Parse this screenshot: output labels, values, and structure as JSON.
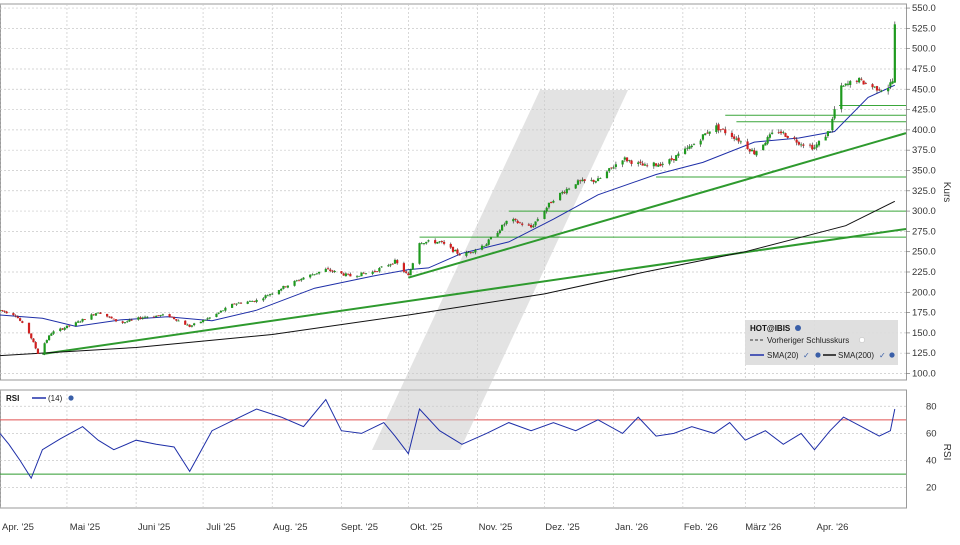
{
  "instrument": "HOT@IBIS",
  "legend": {
    "instrument_label": "HOT@IBIS",
    "prev_close_label": "Vorheriger Schlusskurs",
    "sma20_label": "SMA(20)",
    "sma200_label": "SMA(200)"
  },
  "rsi_panel": {
    "label": "RSI",
    "period_label": "(14)"
  },
  "chart_data": [
    {
      "type": "candlestick",
      "ylabel": "Kurs",
      "ylim": [
        92,
        555
      ],
      "yticks": [
        100,
        125,
        150,
        175,
        200,
        225,
        250,
        275,
        300,
        325,
        350,
        375,
        400,
        425,
        450,
        475,
        500,
        525,
        550
      ],
      "ytick_labels": [
        "100.0",
        "125.0",
        "150.0",
        "175.0",
        "200.0",
        "225.0",
        "250.0",
        "275.0",
        "300.0",
        "325.0",
        "350.0",
        "375.0",
        "400.0",
        "425.0",
        "450.0",
        "475.0",
        "500.0",
        "525.0",
        "550.0"
      ],
      "xlim": [
        "2025-04-01",
        "2026-05-12"
      ],
      "x_ticks": [
        "2025-04-01",
        "2025-05-01",
        "2025-06-01",
        "2025-07-01",
        "2025-08-01",
        "2025-09-01",
        "2025-10-01",
        "2025-11-01",
        "2025-12-01",
        "2026-01-01",
        "2026-02-01",
        "2026-03-01",
        "2026-04-01"
      ],
      "x_tick_labels": [
        "Apr. '25",
        "Mai '25",
        "Juni '25",
        "Juli '25",
        "Aug. '25",
        "Sept. '25",
        "Okt. '25",
        "Nov. '25",
        "Dez. '25",
        "Jan. '26",
        "Feb. '26",
        "März '26",
        "Apr. '26"
      ],
      "grid": true,
      "legend_position": "bottom-right",
      "price_path": [
        [
          "2025-04-01",
          178
        ],
        [
          "2025-04-08",
          172
        ],
        [
          "2025-04-14",
          150
        ],
        [
          "2025-04-18",
          125
        ],
        [
          "2025-04-24",
          150
        ],
        [
          "2025-05-05",
          162
        ],
        [
          "2025-05-15",
          176
        ],
        [
          "2025-05-25",
          162
        ],
        [
          "2025-06-05",
          170
        ],
        [
          "2025-06-15",
          172
        ],
        [
          "2025-06-25",
          158
        ],
        [
          "2025-07-05",
          170
        ],
        [
          "2025-07-15",
          186
        ],
        [
          "2025-07-25",
          190
        ],
        [
          "2025-08-05",
          205
        ],
        [
          "2025-08-15",
          218
        ],
        [
          "2025-08-25",
          228
        ],
        [
          "2025-09-05",
          220
        ],
        [
          "2025-09-15",
          225
        ],
        [
          "2025-09-25",
          238
        ],
        [
          "2025-10-01",
          220
        ],
        [
          "2025-10-06",
          262
        ],
        [
          "2025-10-15",
          262
        ],
        [
          "2025-10-25",
          245
        ],
        [
          "2025-11-05",
          260
        ],
        [
          "2025-11-15",
          290
        ],
        [
          "2025-11-25",
          280
        ],
        [
          "2025-12-05",
          315
        ],
        [
          "2025-12-15",
          335
        ],
        [
          "2025-12-25",
          338
        ],
        [
          "2026-01-05",
          365
        ],
        [
          "2026-01-15",
          355
        ],
        [
          "2026-01-25",
          360
        ],
        [
          "2026-02-05",
          380
        ],
        [
          "2026-02-15",
          405
        ],
        [
          "2026-02-25",
          390
        ],
        [
          "2026-03-05",
          372
        ],
        [
          "2026-03-15",
          400
        ],
        [
          "2026-03-25",
          385
        ],
        [
          "2026-04-01",
          378
        ],
        [
          "2026-04-08",
          400
        ],
        [
          "2026-04-12",
          450
        ],
        [
          "2026-04-20",
          462
        ],
        [
          "2026-04-28",
          452
        ],
        [
          "2026-05-03",
          450
        ],
        [
          "2026-05-06",
          460
        ],
        [
          "2026-05-07",
          530
        ]
      ],
      "series": [
        {
          "name": "SMA(20)",
          "color": "#1f2fa8",
          "points": [
            [
              "2025-04-01",
              172
            ],
            [
              "2025-04-20",
              168
            ],
            [
              "2025-05-05",
              158
            ],
            [
              "2025-05-25",
              166
            ],
            [
              "2025-06-15",
              170
            ],
            [
              "2025-07-05",
              165
            ],
            [
              "2025-07-25",
              178
            ],
            [
              "2025-08-20",
              205
            ],
            [
              "2025-09-15",
              220
            ],
            [
              "2025-10-01",
              228
            ],
            [
              "2025-10-10",
              230
            ],
            [
              "2025-10-25",
              248
            ],
            [
              "2025-11-15",
              262
            ],
            [
              "2025-12-05",
              290
            ],
            [
              "2025-12-25",
              320
            ],
            [
              "2026-01-20",
              345
            ],
            [
              "2026-02-10",
              360
            ],
            [
              "2026-03-05",
              385
            ],
            [
              "2026-03-25",
              390
            ],
            [
              "2026-04-10",
              398
            ],
            [
              "2026-04-25",
              440
            ],
            [
              "2026-05-07",
              455
            ]
          ]
        },
        {
          "name": "SMA(200)",
          "color": "#111111",
          "points": [
            [
              "2025-04-01",
              122
            ],
            [
              "2025-06-01",
              132
            ],
            [
              "2025-08-01",
              148
            ],
            [
              "2025-10-01",
              172
            ],
            [
              "2025-12-01",
              198
            ],
            [
              "2026-01-15",
              225
            ],
            [
              "2026-03-01",
              250
            ],
            [
              "2026-04-15",
              282
            ],
            [
              "2026-05-07",
              312
            ]
          ]
        }
      ],
      "trendlines": [
        {
          "color": "#2e9a2e",
          "from": [
            "2025-04-20",
            124
          ],
          "to": [
            "2026-05-12",
            278
          ]
        },
        {
          "color": "#2e9a2e",
          "from": [
            "2025-10-01",
            218
          ],
          "to": [
            "2026-05-12",
            396
          ]
        }
      ],
      "horizontal_levels": [
        {
          "y": 268,
          "from": "2025-10-06"
        },
        {
          "y": 300,
          "from": "2025-11-15"
        },
        {
          "y": 342,
          "from": "2026-01-20"
        },
        {
          "y": 410,
          "from": "2026-02-25"
        },
        {
          "y": 418,
          "from": "2026-02-20"
        },
        {
          "y": 430,
          "from": "2026-04-12"
        }
      ]
    },
    {
      "type": "line",
      "title": "RSI",
      "ylabel": "RSI",
      "ylim": [
        5,
        92
      ],
      "yticks": [
        20,
        40,
        60,
        80
      ],
      "overbought": 70,
      "oversold": 30,
      "series": [
        {
          "name": "(14)",
          "color": "#1f2fa8",
          "points": [
            [
              "2025-04-01",
              60
            ],
            [
              "2025-04-05",
              52
            ],
            [
              "2025-04-10",
              40
            ],
            [
              "2025-04-15",
              27
            ],
            [
              "2025-04-20",
              48
            ],
            [
              "2025-04-28",
              56
            ],
            [
              "2025-05-08",
              65
            ],
            [
              "2025-05-15",
              55
            ],
            [
              "2025-05-22",
              48
            ],
            [
              "2025-06-01",
              55
            ],
            [
              "2025-06-10",
              52
            ],
            [
              "2025-06-18",
              50
            ],
            [
              "2025-06-25",
              32
            ],
            [
              "2025-07-05",
              62
            ],
            [
              "2025-07-15",
              70
            ],
            [
              "2025-07-25",
              78
            ],
            [
              "2025-08-05",
              72
            ],
            [
              "2025-08-15",
              65
            ],
            [
              "2025-08-25",
              85
            ],
            [
              "2025-09-01",
              62
            ],
            [
              "2025-09-10",
              60
            ],
            [
              "2025-09-20",
              68
            ],
            [
              "2025-09-25",
              58
            ],
            [
              "2025-10-01",
              45
            ],
            [
              "2025-10-06",
              78
            ],
            [
              "2025-10-15",
              62
            ],
            [
              "2025-10-25",
              52
            ],
            [
              "2025-11-05",
              60
            ],
            [
              "2025-11-15",
              68
            ],
            [
              "2025-11-25",
              62
            ],
            [
              "2025-12-05",
              68
            ],
            [
              "2025-12-15",
              62
            ],
            [
              "2025-12-25",
              70
            ],
            [
              "2026-01-05",
              60
            ],
            [
              "2026-01-12",
              72
            ],
            [
              "2026-01-20",
              58
            ],
            [
              "2026-01-28",
              60
            ],
            [
              "2026-02-05",
              65
            ],
            [
              "2026-02-15",
              60
            ],
            [
              "2026-02-22",
              68
            ],
            [
              "2026-03-01",
              55
            ],
            [
              "2026-03-10",
              62
            ],
            [
              "2026-03-18",
              52
            ],
            [
              "2026-03-26",
              60
            ],
            [
              "2026-04-01",
              48
            ],
            [
              "2026-04-08",
              62
            ],
            [
              "2026-04-14",
              72
            ],
            [
              "2026-04-22",
              65
            ],
            [
              "2026-04-30",
              58
            ],
            [
              "2026-05-05",
              62
            ],
            [
              "2026-05-07",
              78
            ]
          ]
        }
      ]
    }
  ]
}
